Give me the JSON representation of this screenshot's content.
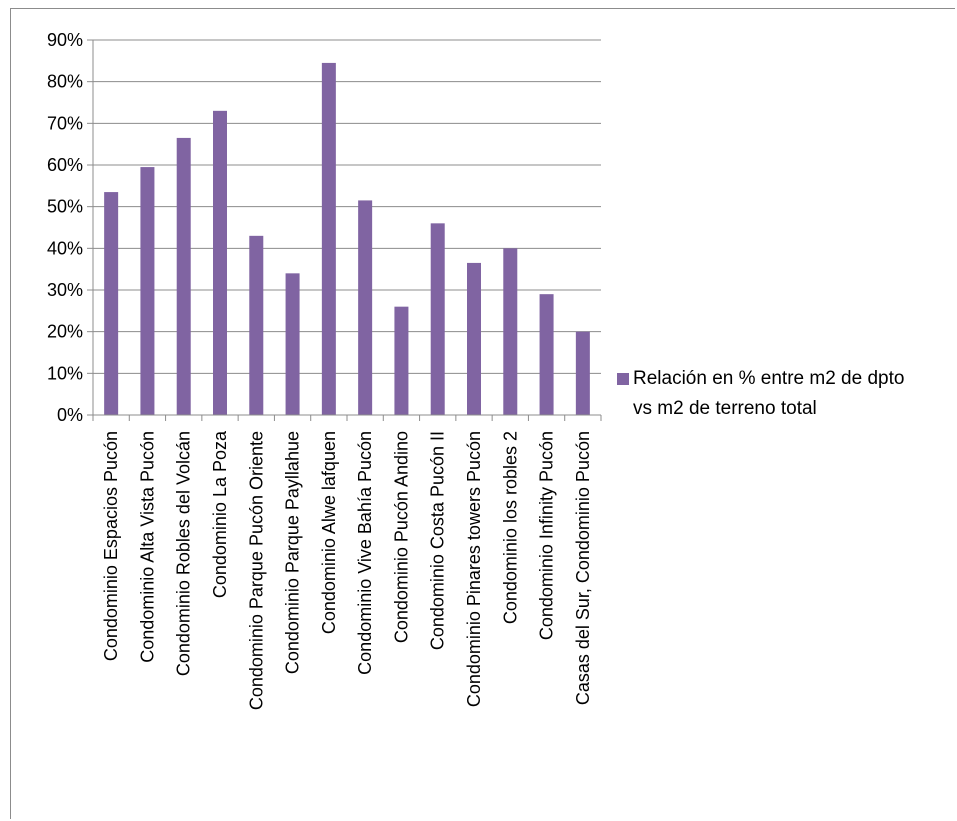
{
  "chart_data": {
    "type": "bar",
    "categories": [
      "Condominio  Espacios Pucón",
      "Condominio  Alta Vista Pucón",
      "Condominio Robles del Volcán",
      "Condominio La Poza",
      "Condominio Parque Pucón Oriente",
      "Condominio Parque Payllahue",
      "Condominio Alwe lafquen",
      "Condominio Vive Bahía Pucón",
      "Condominio  Pucón Andino",
      "Condominio Costa Pucón II",
      "Condominio Pinares towers Pucón",
      "Condominio  los robles 2",
      "Condominio Infinity Pucón",
      "Casas del Sur, Condominio Pucón"
    ],
    "series": [
      {
        "name": "Relación en % entre m2 de dpto vs m2 de terreno total",
        "values": [
          0.535,
          0.595,
          0.665,
          0.73,
          0.43,
          0.34,
          0.845,
          0.515,
          0.26,
          0.46,
          0.365,
          0.4,
          0.29,
          0.2
        ]
      }
    ],
    "yticks": [
      "0%",
      "10%",
      "20%",
      "30%",
      "40%",
      "50%",
      "60%",
      "70%",
      "80%",
      "90%"
    ],
    "ylim": [
      0,
      0.9
    ],
    "grid": true,
    "legend_position": "right",
    "bar_color": "#8064a2"
  }
}
